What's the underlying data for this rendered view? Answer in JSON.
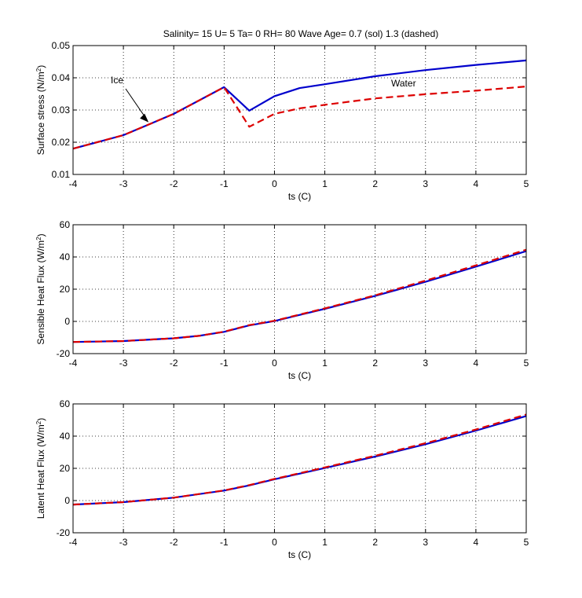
{
  "figure": {
    "title": "Salinity= 15 U= 5 Ta= 0 RH= 80 Wave Age= 0.7 (sol) 1.3 (dashed)"
  },
  "colors": {
    "solid_series": "#0000cc",
    "dashed_series": "#dd0000",
    "grid": "#000000",
    "annotation_arrow": "#000000"
  },
  "chart_data": [
    {
      "type": "line",
      "xlabel": "ts (C)",
      "ylabel": "Surface stress (N/m²)",
      "xlim": [
        -4,
        5
      ],
      "ylim": [
        0.01,
        0.05
      ],
      "xticks": [
        -4,
        -3,
        -2,
        -1,
        0,
        1,
        2,
        3,
        4,
        5
      ],
      "yticks": [
        0.01,
        0.02,
        0.03,
        0.04,
        0.05
      ],
      "ytick_labels": [
        "0.01",
        "0.02",
        "0.03",
        "0.04",
        "0.05"
      ],
      "grid": true,
      "annotations": [
        {
          "text": "Ice",
          "arrow_to": [
            -2.5,
            0.0262
          ]
        },
        {
          "text": "Water"
        }
      ],
      "series": [
        {
          "style": "solid",
          "color": "#0000cc",
          "x": [
            -4,
            -3,
            -2.5,
            -2,
            -1,
            -0.5,
            0,
            0.5,
            1,
            2,
            3,
            4,
            5
          ],
          "y": [
            0.018,
            0.0222,
            0.0255,
            0.0288,
            0.0371,
            0.0298,
            0.0343,
            0.0368,
            0.038,
            0.0405,
            0.0424,
            0.044,
            0.0454
          ]
        },
        {
          "style": "dashed",
          "color": "#dd0000",
          "x": [
            -4,
            -3,
            -2.5,
            -2,
            -1,
            -0.5,
            0,
            0.5,
            1,
            2,
            3,
            4,
            5
          ],
          "y": [
            0.018,
            0.0222,
            0.0255,
            0.0288,
            0.0371,
            0.0248,
            0.0288,
            0.0305,
            0.0316,
            0.0336,
            0.0349,
            0.036,
            0.0373
          ]
        }
      ]
    },
    {
      "type": "line",
      "xlabel": "ts (C)",
      "ylabel": "Sensible Heat Flux (W/m²)",
      "xlim": [
        -4,
        5
      ],
      "ylim": [
        -20,
        60
      ],
      "xticks": [
        -4,
        -3,
        -2,
        -1,
        0,
        1,
        2,
        3,
        4,
        5
      ],
      "yticks": [
        -20,
        0,
        20,
        40,
        60
      ],
      "ytick_labels": [
        "-20",
        "0",
        "20",
        "40",
        "60"
      ],
      "grid": true,
      "series": [
        {
          "style": "solid",
          "color": "#0000cc",
          "x": [
            -4,
            -3,
            -2,
            -1.5,
            -1,
            -0.5,
            0,
            1,
            2,
            3,
            4,
            5
          ],
          "y": [
            -12.8,
            -12.2,
            -10.5,
            -9.0,
            -6.5,
            -2.5,
            0.2,
            7.8,
            15.8,
            24.6,
            34.0,
            43.6
          ]
        },
        {
          "style": "dashed",
          "color": "#dd0000",
          "x": [
            -4,
            -3,
            -2,
            -1.5,
            -1,
            -0.5,
            0,
            1,
            2,
            3,
            4,
            5
          ],
          "y": [
            -12.8,
            -12.2,
            -10.5,
            -9.0,
            -6.4,
            -2.3,
            0.4,
            8.1,
            16.2,
            25.3,
            34.8,
            44.5
          ]
        }
      ]
    },
    {
      "type": "line",
      "xlabel": "ts (C)",
      "ylabel": "Latent Heat Flux (W/m²)",
      "xlim": [
        -4,
        5
      ],
      "ylim": [
        -20,
        60
      ],
      "xticks": [
        -4,
        -3,
        -2,
        -1,
        0,
        1,
        2,
        3,
        4,
        5
      ],
      "yticks": [
        -20,
        0,
        20,
        40,
        60
      ],
      "ytick_labels": [
        "-20",
        "0",
        "20",
        "40",
        "60"
      ],
      "grid": true,
      "series": [
        {
          "style": "solid",
          "color": "#0000cc",
          "x": [
            -4,
            -3,
            -2,
            -1,
            -0.5,
            0,
            1,
            2,
            3,
            4,
            5
          ],
          "y": [
            -2.5,
            -1.0,
            1.8,
            6.2,
            9.4,
            13.2,
            20.2,
            27.3,
            35.0,
            43.4,
            52.5
          ]
        },
        {
          "style": "dashed",
          "color": "#dd0000",
          "x": [
            -4,
            -3,
            -2,
            -1,
            -0.5,
            0,
            1,
            2,
            3,
            4,
            5
          ],
          "y": [
            -2.5,
            -1.0,
            1.8,
            6.3,
            9.6,
            13.4,
            20.6,
            27.8,
            35.6,
            44.1,
            53.4
          ]
        }
      ]
    }
  ]
}
